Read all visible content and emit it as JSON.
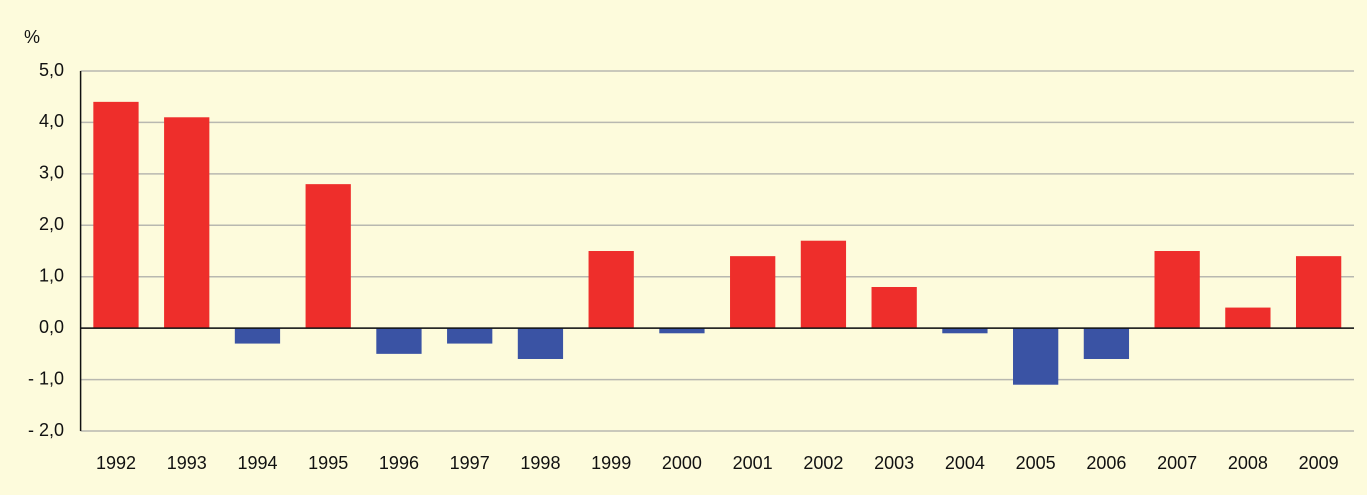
{
  "chart_data": {
    "type": "bar",
    "y_label": "%",
    "categories": [
      "1992",
      "1993",
      "1994",
      "1995",
      "1996",
      "1997",
      "1998",
      "1999",
      "2000",
      "2001",
      "2002",
      "2003",
      "2004",
      "2005",
      "2006",
      "2007",
      "2008",
      "2009"
    ],
    "values": [
      4.4,
      4.1,
      -0.3,
      2.8,
      -0.5,
      -0.3,
      -0.6,
      1.5,
      -0.1,
      1.4,
      1.7,
      0.8,
      -0.1,
      -1.1,
      -0.6,
      1.5,
      0.4,
      1.4
    ],
    "positive_color": "#ee2e2b",
    "negative_color": "#3a53a4",
    "ylim": [
      -2,
      5
    ],
    "yticks": [
      {
        "value": -2,
        "label": "- 2,0"
      },
      {
        "value": -1,
        "label": "- 1,0"
      },
      {
        "value": 0,
        "label": "0,0"
      },
      {
        "value": 1,
        "label": "1,0"
      },
      {
        "value": 2,
        "label": "2,0"
      },
      {
        "value": 3,
        "label": "3,0"
      },
      {
        "value": 4,
        "label": "4,0"
      },
      {
        "value": 5,
        "label": "5,0"
      }
    ],
    "grid": true
  }
}
